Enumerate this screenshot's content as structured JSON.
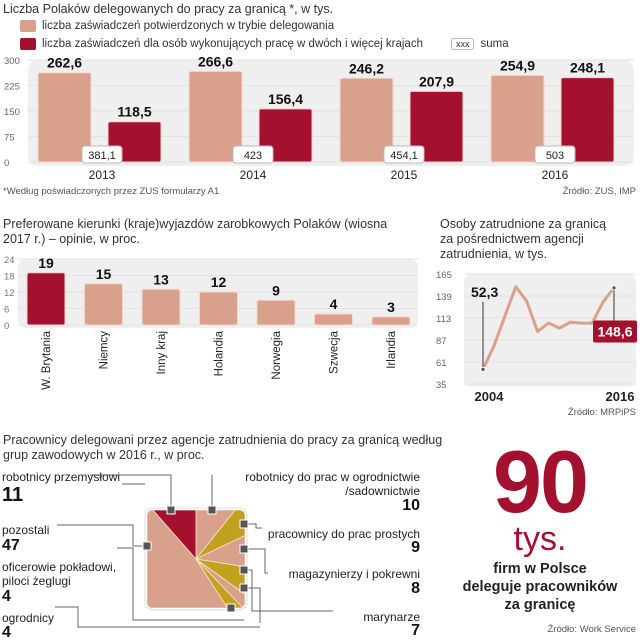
{
  "colors": {
    "light": "#d9a08c",
    "dark": "#a3112e",
    "gold": "#c4a021",
    "panel": "#efefef"
  },
  "chart_data": [
    {
      "type": "bar",
      "title": "Liczba Polaków delegowanych do pracy za granicą *, w tys.",
      "categories": [
        "2013",
        "2014",
        "2015",
        "2016"
      ],
      "series": [
        {
          "name": "liczba zaświadczeń potwierdzonych w trybie delegowania",
          "values": [
            262.6,
            266.6,
            246.2,
            254.9
          ],
          "labels": [
            "262,6",
            "266,6",
            "246,2",
            "254,9"
          ]
        },
        {
          "name": "liczba zaświadczeń dla osób wykonujących pracę w dwóch i więcej krajach",
          "values": [
            118.5,
            156.4,
            207.9,
            248.1
          ],
          "labels": [
            "118,5",
            "156,4",
            "207,9",
            "248,1"
          ]
        }
      ],
      "totals": [
        "381,1",
        "423",
        "454,1",
        "503"
      ],
      "total_legend": {
        "box": "xxx",
        "label": "suma"
      },
      "yticks": [
        "300",
        "225",
        "150",
        "75",
        "0"
      ],
      "ylim": [
        0,
        300
      ],
      "footnote": "*Według poświadczonych przez ZUS  formularzy A1",
      "source": "Źródło: ZUS, IMP"
    },
    {
      "type": "bar",
      "title": "Preferowane kierunki (kraje)wyjazdów zarobkowych Polaków (wiosna 2017 r.) – opinie, w proc.",
      "categories": [
        "W. Brytania",
        "Niemcy",
        "Inny kraj",
        "Holandia",
        "Norwegia",
        "Szwecja",
        "Irlandia"
      ],
      "values": [
        19,
        15,
        13,
        12,
        9,
        4,
        3
      ],
      "highlight_index": 0,
      "yticks": [
        "24",
        "18",
        "12",
        "6",
        "0"
      ],
      "ylim": [
        0,
        24
      ]
    },
    {
      "type": "line",
      "title": "Osoby zatrudnione za granicą za pośrednictwem agencji zatrudnienia, w tys.",
      "x": [
        2004,
        2005,
        2006,
        2007,
        2008,
        2009,
        2010,
        2011,
        2012,
        2013,
        2014,
        2015,
        2016
      ],
      "values": [
        52.3,
        80,
        115,
        150,
        133,
        97,
        107,
        101,
        108,
        107,
        107,
        132,
        148.6
      ],
      "xlabels": [
        "2004",
        "2016"
      ],
      "start_label": "52,3",
      "end_label": "148,6",
      "yticks": [
        "165",
        "139",
        "113",
        "87",
        "61",
        "35"
      ],
      "ylim": [
        35,
        165
      ],
      "source": "Źródło: MRPiPS"
    },
    {
      "type": "pie",
      "title": "Pracownicy delegowani przez agencje zatrudnienia do pracy za granicą według grup zawodowych w 2016 r., w proc.",
      "slices": [
        {
          "label": "robotnicy przemysłowi",
          "value": 11,
          "color": "dark"
        },
        {
          "label": "robotnicy do prac w ogrodnictwie /sadownictwie",
          "value": 10,
          "color": "light"
        },
        {
          "label": "pracownicy do prac prostych",
          "value": 9,
          "color": "gold"
        },
        {
          "label": "magazynierzy i pokrewni",
          "value": 8,
          "color": "light"
        },
        {
          "label": "marynarze",
          "value": 7,
          "color": "gold"
        },
        {
          "label": "ogrodnicy",
          "value": 4,
          "color": "light"
        },
        {
          "label": "oficerowie pokładowi, piloci żeglugi",
          "value": 4,
          "color": "gold"
        },
        {
          "label": "pozostali",
          "value": 47,
          "color": "light"
        }
      ]
    }
  ],
  "labels": {
    "garden_1": "robotnicy do prac w ogrodnictwie",
    "garden_2": "/sadownictwie",
    "officers_1": "oficerowie pokładowi,",
    "officers_2": "piloci żeglugi",
    "pie_title_1": "Pracownicy delegowani przez agencje zatrudnienia do pracy za granicą według",
    "pie_title_2": "grup zawodowych w 2016 r., w proc.",
    "bar2_title_1": "Preferowane kierunki (kraje)wyjazdów zarobkowych Polaków (wiosna",
    "bar2_title_2": "2017 r.) – opinie, w proc.",
    "line_title_1": "Osoby zatrudnione za granicą",
    "line_title_2": "za pośrednictwem agencji",
    "line_title_3": "zatrudnienia, w tys."
  },
  "callout": {
    "number": "90",
    "unit": "tys.",
    "line1": "firm w Polsce",
    "line2": "deleguje pracowników",
    "line3": "za granicę",
    "source": "Źródło: Work Service"
  }
}
